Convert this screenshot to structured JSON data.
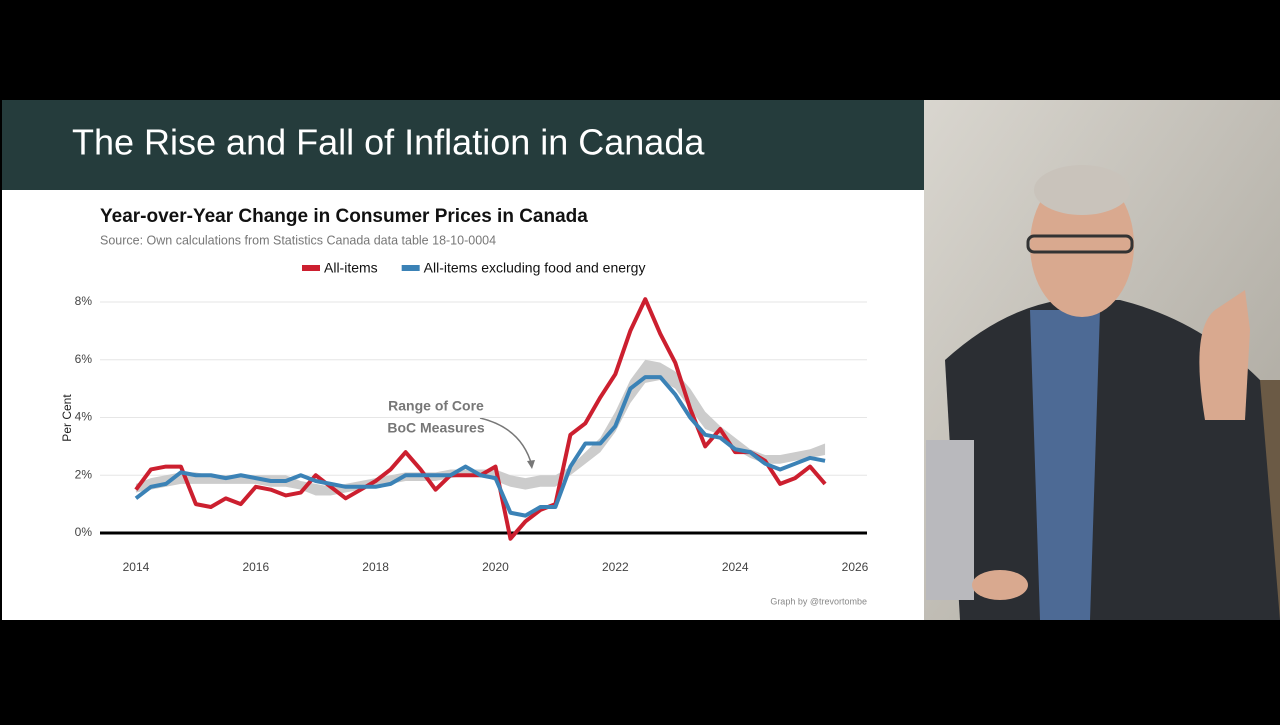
{
  "slide": {
    "title": "The Rise and Fall of Inflation in Canada"
  },
  "chart_data": {
    "type": "line",
    "title": "Year-over-Year Change in Consumer Prices in Canada",
    "subtitle": "Source: Own calculations from Statistics Canada data table 18-10-0004",
    "ylabel": "Per Cent",
    "annotation": [
      "Range of Core",
      "BoC Measures"
    ],
    "credit": "Graph by @trevortombe",
    "x": [
      2014,
      2014.25,
      2014.5,
      2014.75,
      2015,
      2015.25,
      2015.5,
      2015.75,
      2016,
      2016.25,
      2016.5,
      2016.75,
      2017,
      2017.25,
      2017.5,
      2017.75,
      2018,
      2018.25,
      2018.5,
      2018.75,
      2019,
      2019.25,
      2019.5,
      2019.75,
      2020,
      2020.25,
      2020.5,
      2020.75,
      2021,
      2021.25,
      2021.5,
      2021.75,
      2022,
      2022.25,
      2022.5,
      2022.75,
      2023,
      2023.25,
      2023.5,
      2023.75,
      2024,
      2024.25,
      2024.5,
      2024.75,
      2025,
      2025.25,
      2025.5
    ],
    "series": [
      {
        "name": "All-items",
        "color": "#cc1f2f",
        "values": [
          1.5,
          2.2,
          2.3,
          2.3,
          1.0,
          0.9,
          1.2,
          1.0,
          1.6,
          1.5,
          1.3,
          1.4,
          2.0,
          1.6,
          1.2,
          1.5,
          1.8,
          2.2,
          2.8,
          2.2,
          1.5,
          2.0,
          2.0,
          2.0,
          2.3,
          -0.2,
          0.4,
          0.8,
          1.0,
          3.4,
          3.8,
          4.7,
          5.5,
          7.0,
          8.1,
          6.9,
          5.9,
          4.3,
          3.0,
          3.6,
          2.8,
          2.8,
          2.5,
          1.7,
          1.9,
          2.3,
          1.7
        ]
      },
      {
        "name": "All-items excluding food and energy",
        "color": "#3b82b6",
        "values": [
          1.2,
          1.6,
          1.7,
          2.1,
          2.0,
          2.0,
          1.9,
          2.0,
          1.9,
          1.8,
          1.8,
          2.0,
          1.8,
          1.7,
          1.6,
          1.6,
          1.6,
          1.7,
          2.0,
          2.0,
          2.0,
          2.0,
          2.3,
          2.0,
          1.9,
          0.7,
          0.6,
          0.9,
          0.9,
          2.3,
          3.1,
          3.1,
          3.7,
          5.0,
          5.4,
          5.4,
          4.8,
          4.0,
          3.4,
          3.3,
          2.9,
          2.8,
          2.4,
          2.2,
          2.4,
          2.6,
          2.5
        ]
      }
    ],
    "band": {
      "color": "#cccccc",
      "low": [
        1.4,
        1.5,
        1.6,
        1.7,
        1.7,
        1.7,
        1.7,
        1.7,
        1.7,
        1.6,
        1.6,
        1.5,
        1.3,
        1.3,
        1.4,
        1.5,
        1.6,
        1.7,
        1.8,
        1.8,
        1.8,
        1.9,
        2.0,
        2.0,
        1.8,
        1.6,
        1.5,
        1.6,
        1.6,
        2.0,
        2.4,
        2.8,
        3.5,
        4.5,
        5.2,
        5.3,
        5.0,
        4.3,
        3.6,
        3.4,
        2.9,
        2.6,
        2.4,
        2.4,
        2.5,
        2.6,
        2.7
      ],
      "high": [
        1.7,
        1.9,
        2.0,
        2.1,
        2.1,
        2.0,
        2.0,
        2.0,
        2.0,
        2.0,
        2.0,
        1.8,
        1.7,
        1.6,
        1.7,
        1.8,
        1.9,
        2.0,
        2.1,
        2.1,
        2.1,
        2.2,
        2.2,
        2.2,
        2.2,
        2.0,
        1.9,
        2.0,
        2.0,
        2.3,
        2.8,
        3.3,
        4.2,
        5.3,
        6.0,
        5.9,
        5.6,
        5.0,
        4.2,
        3.7,
        3.3,
        2.9,
        2.7,
        2.7,
        2.8,
        2.9,
        3.1
      ]
    },
    "xlim": [
      2013.4,
      2026.2
    ],
    "xticks": [
      2014,
      2016,
      2018,
      2020,
      2022,
      2024,
      2026
    ],
    "ylim": [
      -0.5,
      8.4
    ],
    "yticks": [
      {
        "value": 0,
        "label": "0%"
      },
      {
        "value": 2,
        "label": "2%"
      },
      {
        "value": 4,
        "label": "4%"
      },
      {
        "value": 6,
        "label": "6%"
      },
      {
        "value": 8,
        "label": "8%"
      }
    ],
    "grid": true
  }
}
